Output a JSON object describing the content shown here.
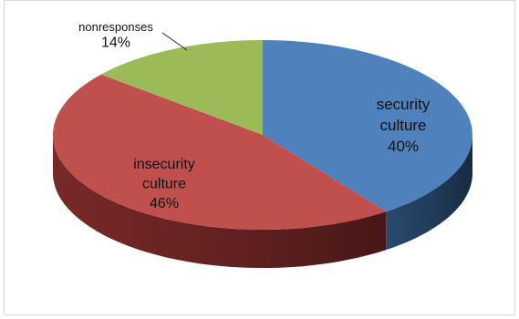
{
  "chart_data": {
    "type": "pie",
    "title": "",
    "slices": [
      {
        "label_lines": [
          "security",
          "culture"
        ],
        "value_label": "40%",
        "value": 40,
        "color": "#4f81bd",
        "side_color": "#2c4d75"
      },
      {
        "label_lines": [
          "insecurity",
          "culture"
        ],
        "value_label": "46%",
        "value": 46,
        "color": "#c0504d",
        "side_color": "#7f2b29"
      },
      {
        "label_lines": [
          "nonresponses"
        ],
        "value_label": "14%",
        "value": 14,
        "color": "#9bbb59",
        "side_color": "#6b8a35"
      }
    ],
    "start": "top",
    "direction": "clockwise",
    "legend": "none",
    "style": "3d"
  }
}
